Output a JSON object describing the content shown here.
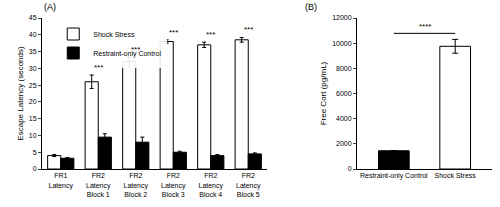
{
  "chart_data": [
    {
      "type": "bar",
      "title": "(A)",
      "ylabel": "Escape Latency (seconds)",
      "categories": [
        "FR1\nLatency",
        "FR2\nLatency\nBlock 1",
        "FR2\nLatency\nBlock 2",
        "FR2\nLatency\nBlock 3",
        "FR2\nLatency\nBlock 4",
        "FR2\nLatency\nBlock 5"
      ],
      "series": [
        {
          "name": "Shock Stress",
          "color": "#ffffff",
          "values": [
            4.0,
            26.0,
            32.0,
            38.0,
            37.0,
            38.5
          ],
          "errors": [
            0.3,
            2.0,
            1.5,
            0.5,
            0.8,
            0.7
          ]
        },
        {
          "name": "Restraint-only Control",
          "color": "#000000",
          "values": [
            3.2,
            9.5,
            8.0,
            5.0,
            4.0,
            4.5
          ],
          "errors": [
            0.2,
            1.0,
            1.5,
            0.3,
            0.3,
            0.3
          ]
        }
      ],
      "ylim": [
        0,
        45
      ],
      "yticks": [
        0,
        5,
        10,
        15,
        20,
        25,
        30,
        35,
        40,
        45
      ],
      "grid": false,
      "legend": "top-left",
      "annotations": [
        {
          "category": "FR2\nLatency\nBlock 1",
          "text": "***"
        },
        {
          "category": "FR2\nLatency\nBlock 2",
          "text": "***"
        },
        {
          "category": "FR2\nLatency\nBlock 3",
          "text": "***"
        },
        {
          "category": "FR2\nLatency\nBlock 4",
          "text": "***"
        },
        {
          "category": "FR2\nLatency\nBlock 5",
          "text": "***"
        }
      ]
    },
    {
      "type": "bar",
      "title": "(B)",
      "ylabel": "Free Cort (pg/mL)",
      "categories": [
        "Restraint-only Control",
        "Shock Stress"
      ],
      "values": [
        1450,
        9750
      ],
      "errors": [
        null,
        550
      ],
      "colors": [
        "#000000",
        "#ffffff"
      ],
      "ylim": [
        0,
        12000
      ],
      "yticks": [
        0,
        2000,
        4000,
        6000,
        8000,
        10000,
        12000
      ],
      "grid": false,
      "annotations": [
        {
          "from": "Restraint-only Control",
          "to": "Shock Stress",
          "text": "****"
        }
      ]
    }
  ]
}
